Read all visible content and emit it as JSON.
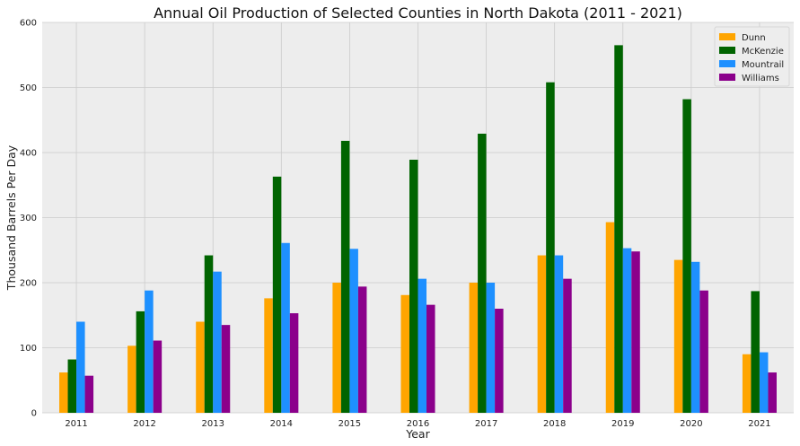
{
  "chart_data": {
    "type": "bar",
    "title": "Annual Oil Production of Selected Counties in North Dakota (2011 - 2021)",
    "xlabel": "Year",
    "ylabel": "Thousand Barrels Per Day",
    "ylim": [
      0,
      600
    ],
    "yticks": [
      "0",
      "100",
      "200",
      "300",
      "400",
      "500",
      "600"
    ],
    "categories": [
      "2011",
      "2012",
      "2013",
      "2014",
      "2015",
      "2016",
      "2017",
      "2018",
      "2019",
      "2020",
      "2021"
    ],
    "series": [
      {
        "name": "Dunn",
        "color": "#FFA500",
        "values": [
          62,
          103,
          140,
          176,
          200,
          181,
          200,
          242,
          293,
          235,
          90
        ]
      },
      {
        "name": "McKenzie",
        "color": "#006400",
        "values": [
          82,
          156,
          242,
          363,
          418,
          389,
          429,
          508,
          565,
          482,
          187
        ]
      },
      {
        "name": "Mountrail",
        "color": "#1E90FF",
        "values": [
          140,
          188,
          217,
          261,
          252,
          206,
          200,
          242,
          253,
          232,
          93
        ]
      },
      {
        "name": "Williams",
        "color": "#8B008B",
        "values": [
          57,
          111,
          135,
          153,
          194,
          166,
          160,
          206,
          248,
          188,
          62
        ]
      }
    ],
    "grid": true,
    "legend": "top-right",
    "background_color": "#EDEDED",
    "grid_color": "#CBCBCB"
  }
}
